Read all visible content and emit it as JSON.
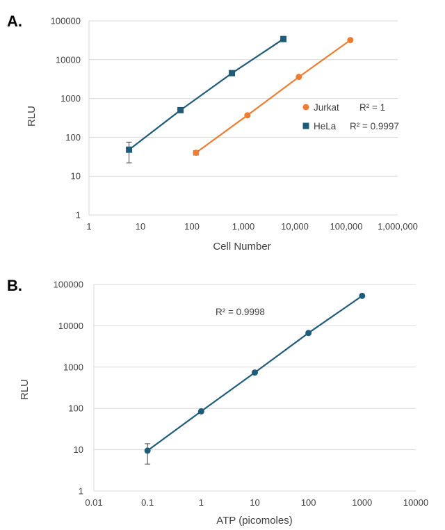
{
  "colors": {
    "orange": "#ED7D31",
    "blue": "#1F5C7A",
    "grid": "#D9D9D9",
    "text": "#404040",
    "errbar": "#404040"
  },
  "chart_data": [
    {
      "type": "scatter",
      "panel_label": "A.",
      "xlabel": "Cell Number",
      "ylabel": "RLU",
      "xscale": "log",
      "yscale": "log",
      "xlim": [
        1,
        1000000
      ],
      "ylim": [
        1,
        100000
      ],
      "xticks": [
        1,
        10,
        100,
        1000,
        10000,
        100000,
        1000000
      ],
      "xtick_labels": [
        "1",
        "10",
        "100",
        "1,000",
        "10,000",
        "100,000",
        "1,000,000"
      ],
      "yticks": [
        1,
        10,
        100,
        1000,
        10000,
        100000
      ],
      "ytick_labels": [
        "1",
        "10",
        "100",
        "1000",
        "10000",
        "100000"
      ],
      "grid": "horizontal",
      "legend_position": "right",
      "series": [
        {
          "name": "Jurkat",
          "color_key": "orange",
          "marker": "circle",
          "r2": "R² = 1",
          "x": [
            120,
            1200,
            12000,
            120000
          ],
          "y": [
            40,
            370,
            3600,
            32000
          ],
          "yerr": [
            5,
            0,
            0,
            0
          ]
        },
        {
          "name": "HeLa",
          "color_key": "blue",
          "marker": "square",
          "r2": "R² = 0.9997",
          "x": [
            6,
            60,
            600,
            6000
          ],
          "y": [
            48,
            500,
            4500,
            34000
          ],
          "yerr_low": [
            22,
            0,
            0,
            0
          ],
          "yerr_high": [
            75,
            0,
            0,
            0
          ]
        }
      ]
    },
    {
      "type": "scatter",
      "panel_label": "B.",
      "xlabel": "ATP (picomoles)",
      "ylabel": "RLU",
      "xscale": "log",
      "yscale": "log",
      "xlim": [
        0.01,
        10000
      ],
      "ylim": [
        1,
        100000
      ],
      "xticks": [
        0.01,
        0.1,
        1,
        10,
        100,
        1000,
        10000
      ],
      "xtick_labels": [
        "0.01",
        "0.1",
        "1",
        "10",
        "100",
        "1000",
        "10000"
      ],
      "yticks": [
        1,
        10,
        100,
        1000,
        10000,
        100000
      ],
      "ytick_labels": [
        "1",
        "10",
        "100",
        "1000",
        "10000",
        "100000"
      ],
      "grid": "horizontal",
      "annotation": "R² = 0.9998",
      "series": [
        {
          "name": "",
          "color_key": "blue",
          "marker": "circle",
          "x": [
            0.1,
            1,
            10,
            100,
            1000
          ],
          "y": [
            9.5,
            85,
            740,
            6700,
            53000
          ],
          "yerr_low": [
            4.5,
            0,
            0,
            0,
            0
          ],
          "yerr_high": [
            14,
            0,
            0,
            0,
            0
          ]
        }
      ]
    }
  ]
}
